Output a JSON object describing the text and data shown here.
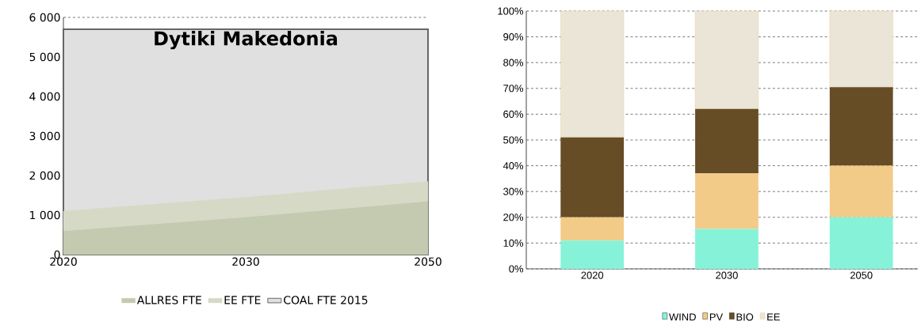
{
  "chart_data": [
    {
      "type": "area",
      "stacked": true,
      "title": "Dytiki Makedonia",
      "categories": [
        "2020",
        "2030",
        "2050"
      ],
      "series": [
        {
          "name": "ALLRES FTE",
          "color": "#c3cab0",
          "values": [
            600,
            950,
            1350
          ]
        },
        {
          "name": "EE FTE",
          "color": "#d6d9c6",
          "values": [
            500,
            500,
            500
          ]
        }
      ],
      "bands": [
        {
          "axis": "y",
          "from": 0,
          "to": 5700,
          "label": "COAL FTE 2015",
          "color": "#e0e0e0"
        }
      ],
      "ylim": [
        0,
        6000
      ],
      "yticks": [
        {
          "value": 0,
          "label": "0"
        },
        {
          "value": 1000,
          "label": "1 000"
        },
        {
          "value": 2000,
          "label": "2 000"
        },
        {
          "value": 3000,
          "label": "3 000"
        },
        {
          "value": 4000,
          "label": "4 000"
        },
        {
          "value": 5000,
          "label": "5 000"
        },
        {
          "value": 6000,
          "label": "6 000"
        }
      ],
      "grid": "y",
      "legend": "bottom"
    },
    {
      "type": "bar",
      "stacked": true,
      "categories": [
        "2020",
        "2030",
        "2050"
      ],
      "series": [
        {
          "name": "WIND",
          "color": "#86f3d8",
          "values": [
            11,
            15.5,
            20
          ]
        },
        {
          "name": "PV",
          "color": "#f2cb88",
          "values": [
            9,
            21.5,
            20
          ]
        },
        {
          "name": "BIO",
          "color": "#664d26",
          "values": [
            31,
            25,
            30.5
          ]
        },
        {
          "name": "EE",
          "color": "#eae5d6",
          "values": [
            49,
            38,
            29.5
          ]
        }
      ],
      "ylim": [
        0,
        100
      ],
      "yticks": [
        {
          "value": 0,
          "label": "0%"
        },
        {
          "value": 10,
          "label": "10%"
        },
        {
          "value": 20,
          "label": "20%"
        },
        {
          "value": 30,
          "label": "30%"
        },
        {
          "value": 40,
          "label": "40%"
        },
        {
          "value": 50,
          "label": "50%"
        },
        {
          "value": 60,
          "label": "60%"
        },
        {
          "value": 70,
          "label": "70%"
        },
        {
          "value": 80,
          "label": "80%"
        },
        {
          "value": 90,
          "label": "90%"
        },
        {
          "value": 100,
          "label": "100%"
        }
      ],
      "grid": "y",
      "legend": "bottom"
    }
  ]
}
